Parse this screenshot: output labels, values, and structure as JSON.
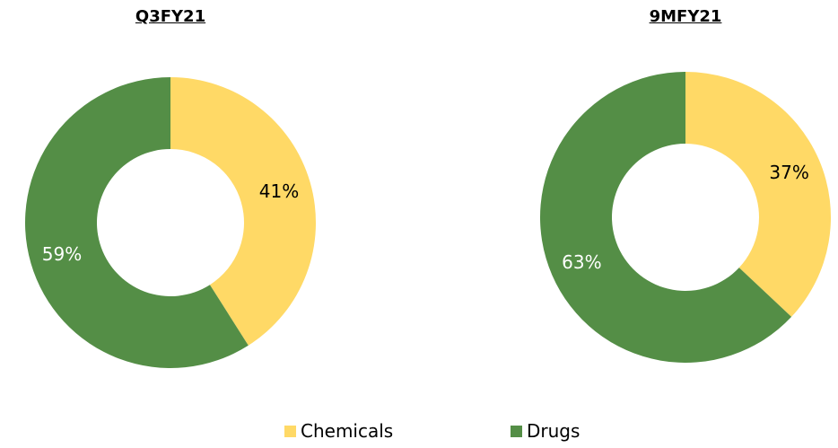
{
  "chart_data": [
    {
      "type": "pie",
      "title": "Q3FY21",
      "donut": true,
      "slices": [
        {
          "label": "Chemicals",
          "value": 41,
          "display": "41%",
          "color": "#FFD966"
        },
        {
          "label": "Drugs",
          "value": 59,
          "display": "59%",
          "color": "#548E46"
        }
      ]
    },
    {
      "type": "pie",
      "title": "9MFY21",
      "donut": true,
      "slices": [
        {
          "label": "Chemicals",
          "value": 37,
          "display": "37%",
          "color": "#FFD966"
        },
        {
          "label": "Drugs",
          "value": 63,
          "display": "63%",
          "color": "#548E46"
        }
      ]
    }
  ],
  "legend": {
    "placement": "bottom",
    "items": [
      {
        "label": "Chemicals",
        "color": "#FFD966"
      },
      {
        "label": "Drugs",
        "color": "#548E46"
      }
    ]
  }
}
